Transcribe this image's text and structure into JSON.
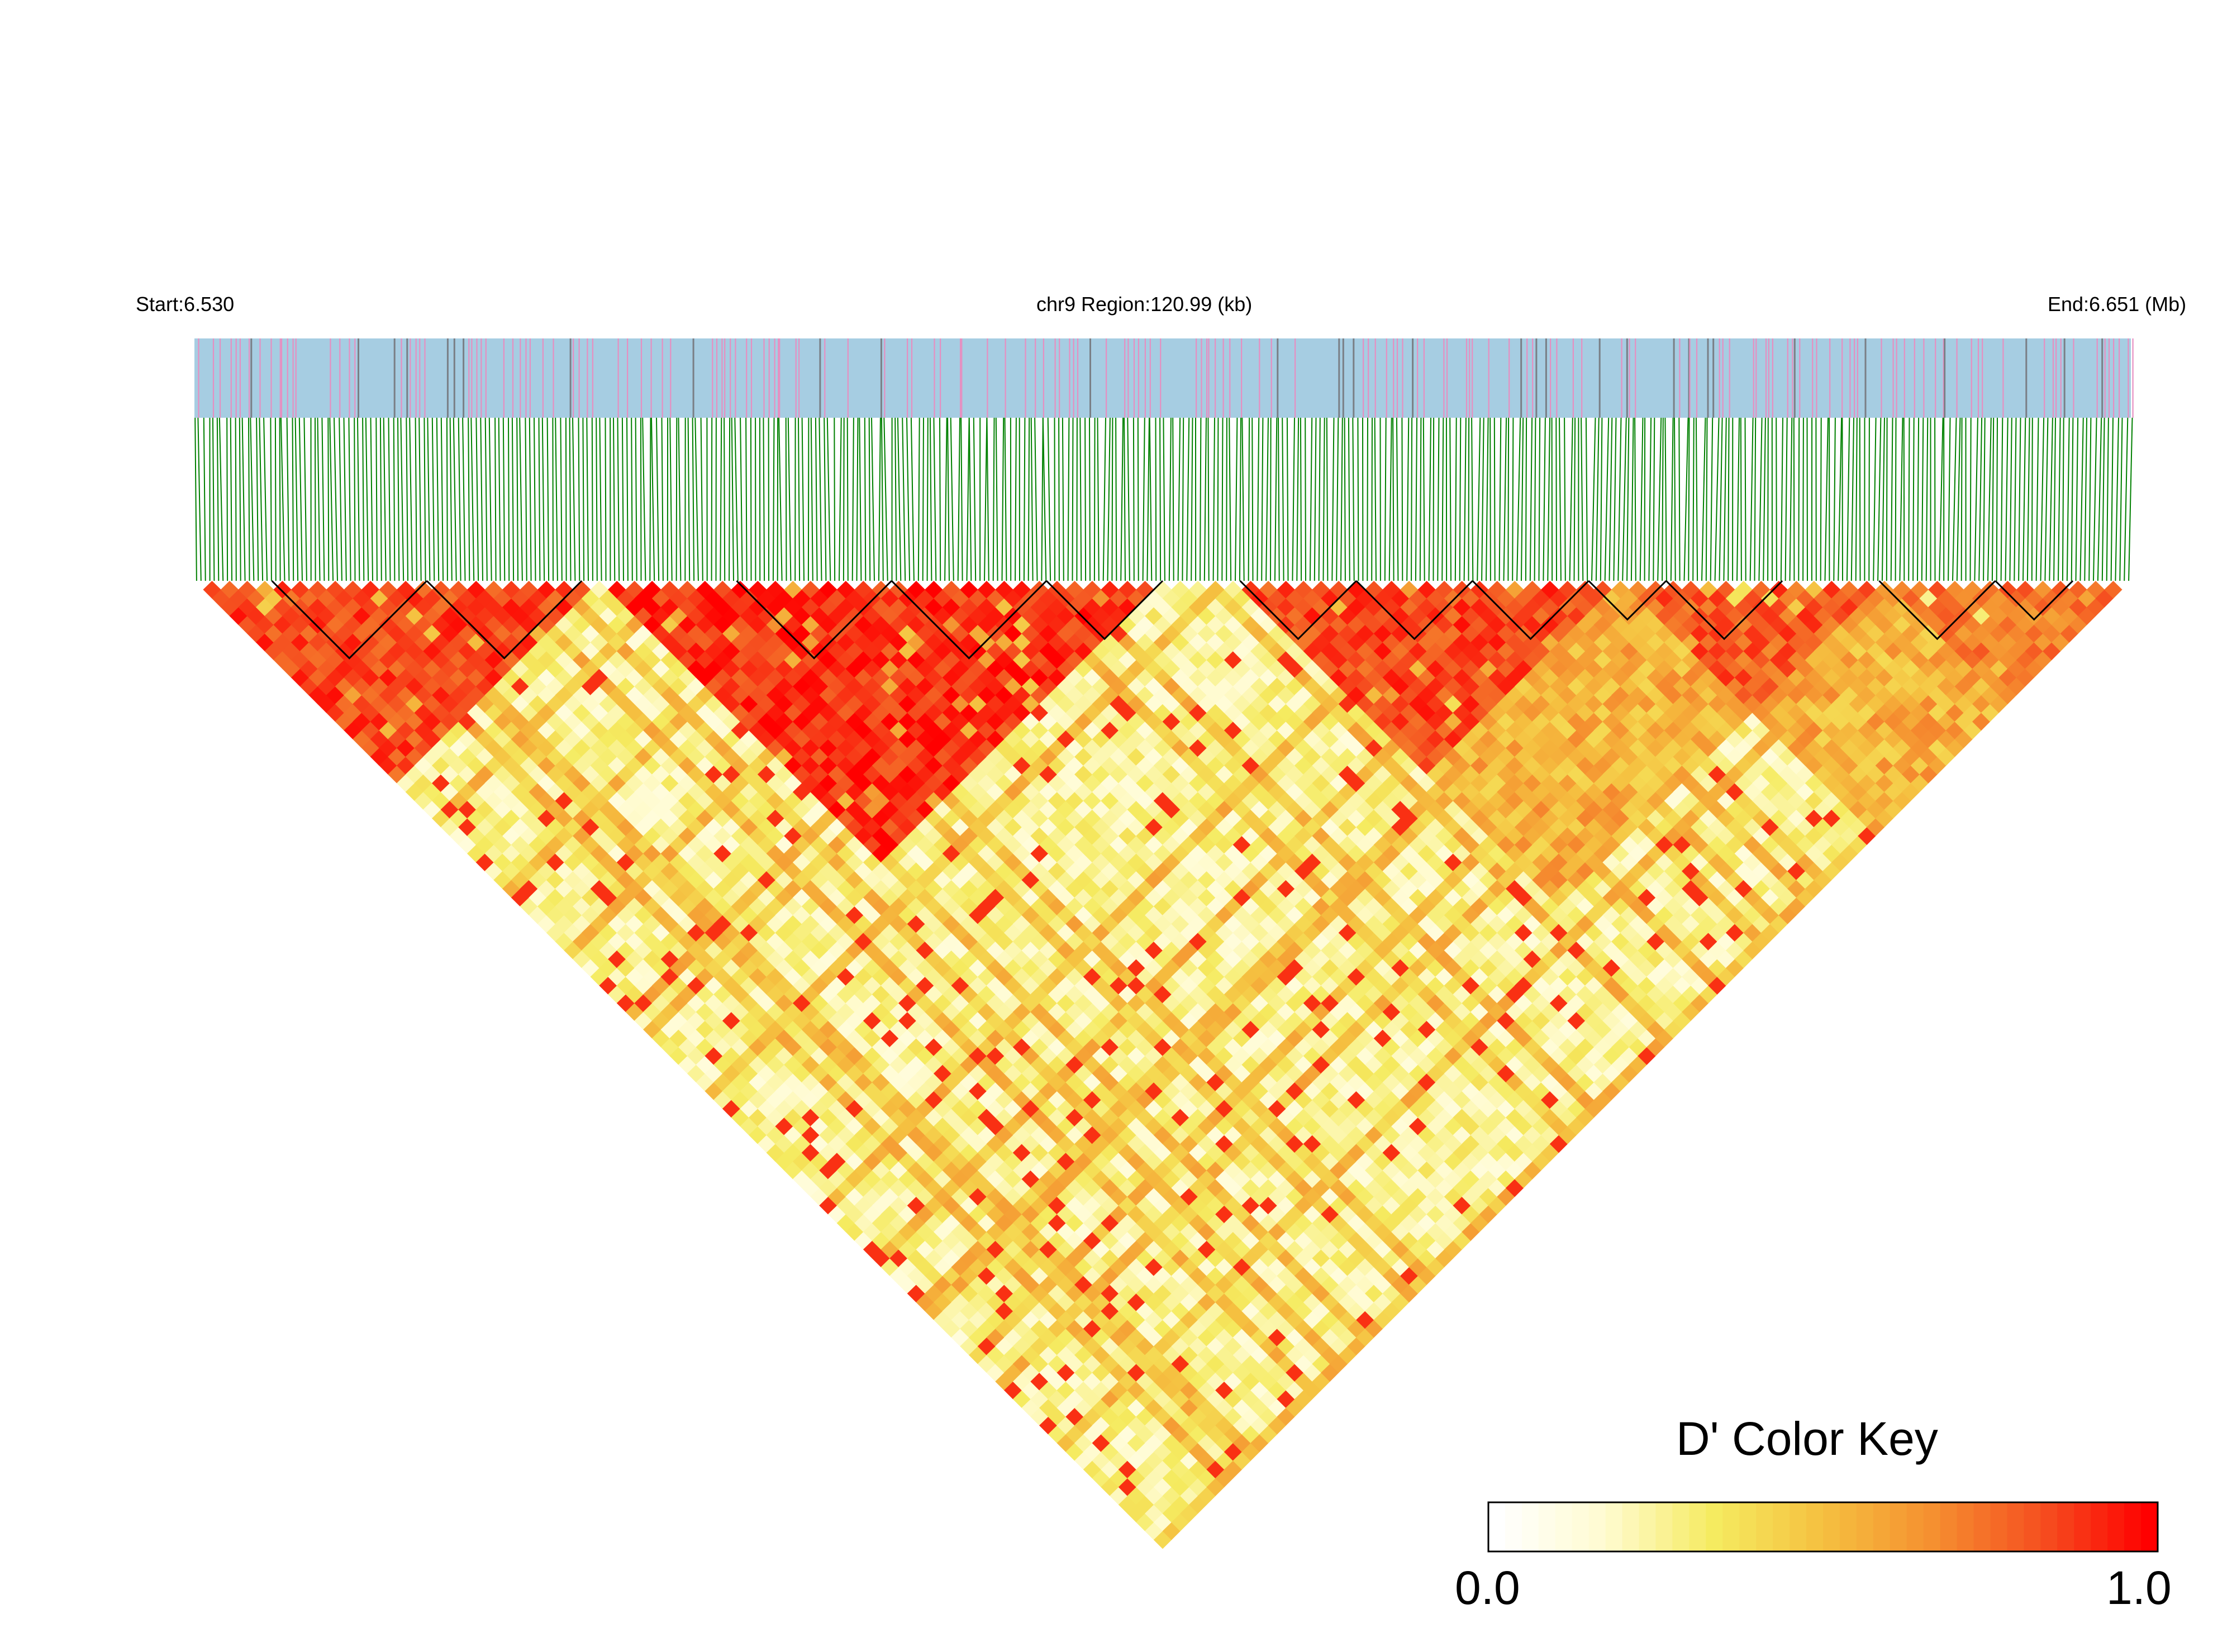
{
  "header": {
    "start_label": "Start:6.530",
    "region_label": "chr9 Region:120.99 (kb)",
    "end_label": "End:6.651 (Mb)"
  },
  "colors": {
    "snp_bar_background": "#a6cde2",
    "snp_mark_pink": "#e68fc1",
    "snp_mark_gray": "#7a7f86",
    "connector_lines": "#008000",
    "block_outline": "#000000",
    "scale": [
      "#ffffff",
      "#fffbd0",
      "#f5eb60",
      "#f5c040",
      "#f59030",
      "#f55020",
      "#ff0000"
    ]
  },
  "chart_data": {
    "type": "heatmap",
    "description_type": "LD heatmap (triangle) of pairwise D'",
    "chromosome": "chr9",
    "region_start_mb": 6.53,
    "region_end_mb": 6.651,
    "region_length_kb": 120.99,
    "metric": "D'",
    "color_key": {
      "title": "D' Color Key",
      "min_label": "0.0",
      "max_label": "1.0",
      "min": 0.0,
      "max": 1.0
    },
    "snp_count_approx": 440,
    "high_ld_blocks": [
      {
        "from": 0.0,
        "to": 0.21,
        "level": 0.85
      },
      {
        "from": 0.21,
        "to": 0.5,
        "level": 0.9
      },
      {
        "from": 0.54,
        "to": 0.74,
        "level": 0.85
      },
      {
        "from": 0.74,
        "to": 0.87,
        "level": 0.8
      },
      {
        "from": 0.87,
        "to": 1.0,
        "level": 0.72
      }
    ],
    "background_level": 0.25
  }
}
